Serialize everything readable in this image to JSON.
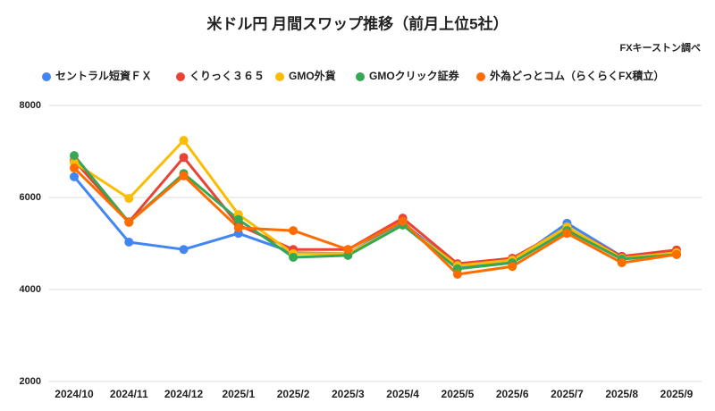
{
  "chart_data": {
    "type": "line",
    "title": "米ドル円 月間スワップ推移（前月上位5社）",
    "annotation": "FXキーストン調べ",
    "categories": [
      "2024/10",
      "2024/11",
      "2024/12",
      "2025/1",
      "2025/2",
      "2025/3",
      "2025/4",
      "2025/5",
      "2025/6",
      "2025/7",
      "2025/8",
      "2025/9"
    ],
    "series": [
      {
        "name": "セントラル短資ＦＸ",
        "color": "#4285f4",
        "values": [
          6450,
          5030,
          4870,
          5220,
          4800,
          4780,
          5450,
          4500,
          4600,
          5440,
          4720,
          4800
        ]
      },
      {
        "name": "くりっく３６５",
        "color": "#ea4335",
        "values": [
          6800,
          5470,
          6870,
          5400,
          4870,
          4870,
          5550,
          4560,
          4680,
          5340,
          4720,
          4860
        ]
      },
      {
        "name": "GMO外貨",
        "color": "#fbbc04",
        "values": [
          6760,
          5980,
          7240,
          5630,
          4780,
          4780,
          5400,
          4520,
          4640,
          5360,
          4680,
          4800
        ]
      },
      {
        "name": "GMOクリック証券",
        "color": "#34a853",
        "values": [
          6910,
          5460,
          6520,
          5520,
          4700,
          4740,
          5400,
          4450,
          4580,
          5280,
          4660,
          4760
        ]
      },
      {
        "name": "外為どっとコム（らくらくFX積立）",
        "color": "#ff6d01",
        "values": [
          6640,
          5460,
          6470,
          5340,
          5280,
          4870,
          5480,
          4330,
          4500,
          5220,
          4580,
          4760
        ]
      }
    ],
    "ylim": [
      2000,
      8000
    ],
    "yticks": [
      2000,
      4000,
      6000,
      8000
    ],
    "grid": true,
    "legend": "top"
  }
}
